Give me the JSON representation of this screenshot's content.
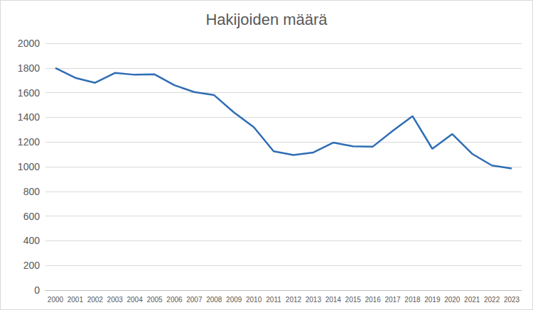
{
  "chart_data": {
    "type": "line",
    "title": "Hakijoiden määrä",
    "categories": [
      "2000",
      "2001",
      "2002",
      "2003",
      "2004",
      "2005",
      "2006",
      "2007",
      "2008",
      "2009",
      "2010",
      "2011",
      "2012",
      "2013",
      "2014",
      "2015",
      "2016",
      "2017",
      "2018",
      "2019",
      "2020",
      "2021",
      "2022",
      "2023"
    ],
    "values": [
      1800,
      1720,
      1680,
      1760,
      1745,
      1748,
      1660,
      1605,
      1580,
      1440,
      1320,
      1125,
      1095,
      1115,
      1195,
      1165,
      1163,
      1290,
      1410,
      1145,
      1265,
      1105,
      1010,
      985
    ],
    "color": "#2e6db4",
    "ylim": [
      0,
      2000
    ],
    "yticks": [
      0,
      200,
      400,
      600,
      800,
      1000,
      1200,
      1400,
      1600,
      1800,
      2000
    ],
    "grid": true
  }
}
